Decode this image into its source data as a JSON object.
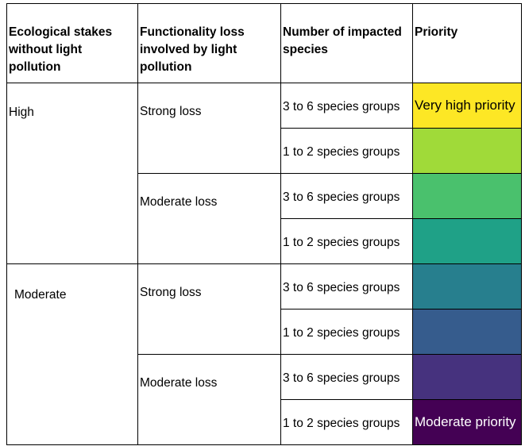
{
  "table": {
    "headers": {
      "stakes": "Ecological stakes without light pollution",
      "functionality": "Functionality loss involved by light pollution",
      "species": "Number of impacted species",
      "priority": "Priority"
    },
    "stakes": [
      "High",
      "Moderate"
    ],
    "losses": [
      "Strong loss",
      "Moderate loss",
      "Strong loss",
      "Moderate loss"
    ],
    "species": [
      "3 to 6 species groups",
      "1 to 2 species groups",
      "3 to 6 species groups",
      "1 to 2 species groups",
      "3 to 6 species groups",
      "1 to 2 species groups",
      "3 to 6 species groups",
      "1 to 2 species groups"
    ],
    "priority_labels": {
      "top": "Very high priority",
      "bottom": "Moderate priority"
    },
    "priority_colors": [
      "#fde725",
      "#a0da39",
      "#4ac16d",
      "#1fa187",
      "#277f8e",
      "#365c8d",
      "#46327e",
      "#440154"
    ]
  }
}
